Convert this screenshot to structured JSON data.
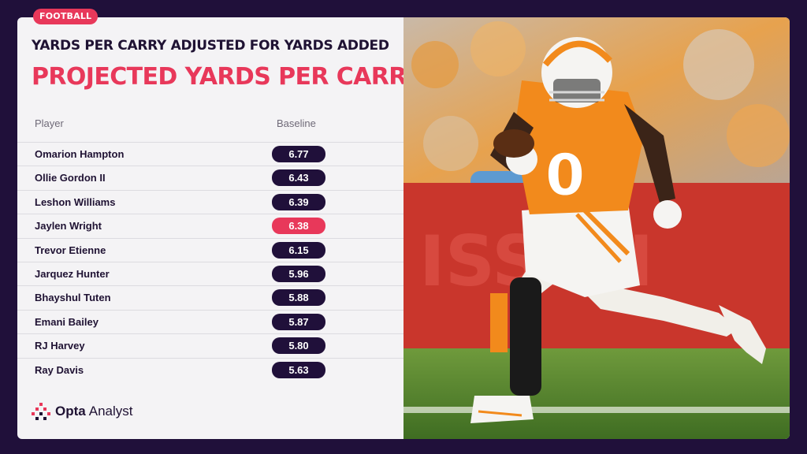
{
  "tag": "FOOTBALL",
  "subtitle": "YARDS PER CARRY ADJUSTED FOR YARDS ADDED",
  "title": "PROJECTED YARDS PER CARRY",
  "table": {
    "col_player": "Player",
    "col_baseline": "Baseline",
    "rows": [
      {
        "player": "Omarion Hampton",
        "baseline": "6.77"
      },
      {
        "player": "Ollie Gordon II",
        "baseline": "6.43"
      },
      {
        "player": "Leshon Williams",
        "baseline": "6.39"
      },
      {
        "player": "Jaylen Wright",
        "baseline": "6.38",
        "highlight": true
      },
      {
        "player": "Trevor Etienne",
        "baseline": "6.15"
      },
      {
        "player": "Jarquez Hunter",
        "baseline": "5.96"
      },
      {
        "player": "Bhayshul Tuten",
        "baseline": "5.88"
      },
      {
        "player": "Emani Bailey",
        "baseline": "5.87"
      },
      {
        "player": "RJ Harvey",
        "baseline": "5.80"
      },
      {
        "player": "Ray Davis",
        "baseline": "5.63"
      }
    ]
  },
  "logo": {
    "part1": "Opta",
    "part2": "Analyst"
  },
  "photo": {
    "jersey_number": "0",
    "banner_text": "ISSAN"
  },
  "colors": {
    "accent": "#e8385a",
    "dark": "#20103a",
    "orange": "#f28a1c"
  }
}
